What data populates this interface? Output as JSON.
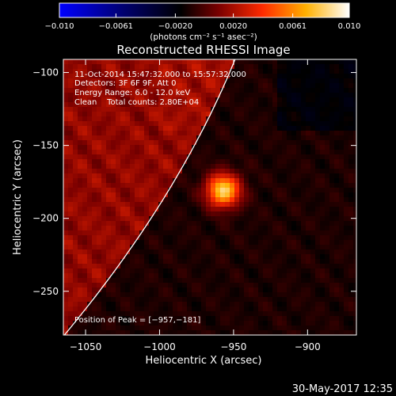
{
  "chart_data": {
    "type": "heatmap",
    "title": "Reconstructed RHESSI Image",
    "colorbar": {
      "label": "(photons cm⁻² s⁻¹ asec⁻²)",
      "min": -0.01,
      "max": 0.01,
      "ticks": [
        "−0.010",
        "−0.0061",
        "−0.0020",
        "0.0020",
        "0.0061",
        "0.010"
      ],
      "tick_values": [
        -0.01,
        -0.0061,
        -0.002,
        0.002,
        0.0061,
        0.01
      ],
      "colormap": "blue-black-red-yellow-white"
    },
    "xlabel": "Heliocentric X (arcsec)",
    "ylabel": "Heliocentric Y (arcsec)",
    "xlim": [
      -1065,
      -867
    ],
    "ylim": [
      -280,
      -91
    ],
    "xticks": [
      {
        "value": -1050,
        "label": "−1050"
      },
      {
        "value": -1000,
        "label": "−1000"
      },
      {
        "value": -950,
        "label": "−950"
      },
      {
        "value": -900,
        "label": "−900"
      }
    ],
    "yticks": [
      {
        "value": -100,
        "label": "−100"
      },
      {
        "value": -150,
        "label": "−150"
      },
      {
        "value": -200,
        "label": "−200"
      },
      {
        "value": -250,
        "label": "−250"
      }
    ],
    "peak": {
      "x": -957,
      "y": -181
    },
    "annotations": {
      "time": "11-Oct-2014 15:47:32.000 to 15:57:32.000",
      "detectors": "Detectors: 3F 6F 9F, Att 0",
      "energy": "Energy Range: 6.0 - 12.0 keV",
      "clean": "Clean    Total counts: 2.80E+04",
      "peak_text": "Position of Peak = [−957,−181]"
    },
    "limb": {
      "color": "#ffffff"
    }
  },
  "footer_date": "30-May-2017 12:35"
}
